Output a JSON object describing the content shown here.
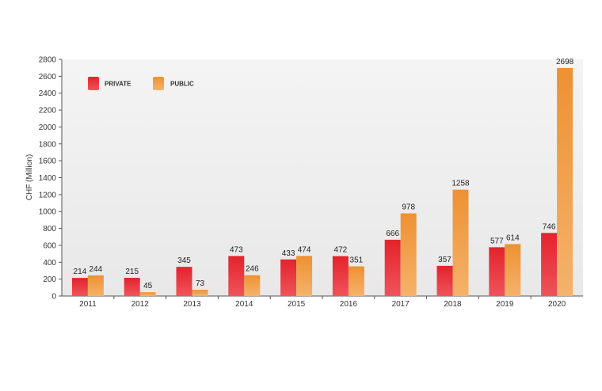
{
  "chart_data": {
    "type": "bar",
    "ylabel": "CHF (Million)",
    "ylim": [
      0,
      2800
    ],
    "yticks": [
      0,
      200,
      400,
      600,
      800,
      1000,
      1200,
      1400,
      1600,
      1800,
      2000,
      2200,
      2400,
      2600,
      2800
    ],
    "categories": [
      "2011",
      "2012",
      "2013",
      "2014",
      "2015",
      "2016",
      "2017",
      "2018",
      "2019",
      "2020"
    ],
    "series": [
      {
        "name": "PRIVATE",
        "color": "#e8323a",
        "values": [
          214,
          215,
          345,
          473,
          433,
          472,
          666,
          357,
          577,
          746
        ]
      },
      {
        "name": "PUBLIC",
        "color": "#f09a40",
        "values": [
          244,
          45,
          73,
          246,
          474,
          351,
          978,
          1258,
          614,
          2698
        ]
      }
    ],
    "legend_position": "top-left",
    "grid": false
  }
}
